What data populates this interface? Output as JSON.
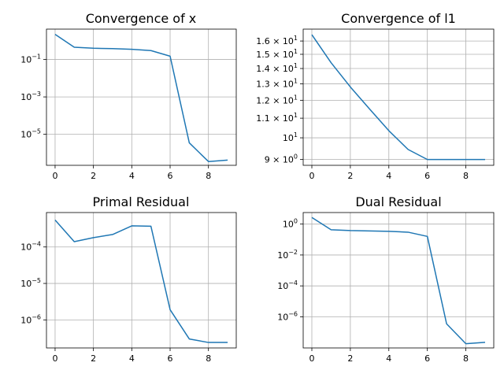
{
  "chart_data": [
    {
      "type": "line",
      "title": "Convergence of x",
      "yscale": "log",
      "grid": true,
      "color": "#1f77b4",
      "x": [
        0,
        1,
        2,
        3,
        4,
        5,
        6,
        7,
        8,
        9
      ],
      "y": [
        2.2,
        0.45,
        0.4,
        0.38,
        0.35,
        0.3,
        0.15,
        3.5e-06,
        3.5e-07,
        4.2e-07
      ],
      "xlim": [
        -0.45,
        9.45
      ],
      "ylim": [
        2.2e-07,
        4.2
      ],
      "x_ticks": [
        0,
        2,
        4,
        6,
        8
      ],
      "x_tick_labels": [
        "0",
        "2",
        "4",
        "6",
        "8"
      ],
      "y_ticks": [
        1e-05,
        0.001,
        0.1
      ],
      "y_tick_labels": [
        {
          "base": "10",
          "exp": "−5"
        },
        {
          "base": "10",
          "exp": "−3"
        },
        {
          "base": "10",
          "exp": "−1"
        }
      ]
    },
    {
      "type": "line",
      "title": "Convergence of l1",
      "yscale": "log",
      "grid": true,
      "color": "#1f77b4",
      "x": [
        0,
        1,
        2,
        3,
        4,
        5,
        6,
        7,
        8,
        9
      ],
      "y": [
        16.5,
        14.4,
        12.8,
        11.5,
        10.35,
        9.45,
        9.0,
        9.0,
        9.0,
        9.0
      ],
      "xlim": [
        -0.45,
        9.45
      ],
      "ylim": [
        8.75,
        16.95
      ],
      "x_ticks": [
        0,
        2,
        4,
        6,
        8
      ],
      "x_tick_labels": [
        "0",
        "2",
        "4",
        "6",
        "8"
      ],
      "y_ticks": [
        16,
        15,
        14,
        13,
        12,
        11,
        10,
        9
      ],
      "y_tick_labels": [
        {
          "base": "1.6 × 10",
          "exp": "1"
        },
        {
          "base": "1.5 × 10",
          "exp": "1"
        },
        {
          "base": "1.4 × 10",
          "exp": "1"
        },
        {
          "base": "1.3 × 10",
          "exp": "1"
        },
        {
          "base": "1.2 × 10",
          "exp": "1"
        },
        {
          "base": "1.1 × 10",
          "exp": "1"
        },
        {
          "base": "10",
          "exp": "1"
        },
        {
          "base": "9 × 10",
          "exp": "0"
        }
      ]
    },
    {
      "type": "line",
      "title": "Primal Residual",
      "yscale": "log",
      "grid": true,
      "color": "#1f77b4",
      "x": [
        0,
        1,
        2,
        3,
        4,
        5,
        6,
        7,
        8,
        9
      ],
      "y": [
        0.00055,
        0.00014,
        0.00018,
        0.00022,
        0.00038,
        0.00037,
        1.9e-06,
        3e-07,
        2.4e-07,
        2.4e-07
      ],
      "xlim": [
        -0.45,
        9.45
      ],
      "ylim": [
        1.7e-07,
        0.00088
      ],
      "x_ticks": [
        0,
        2,
        4,
        6,
        8
      ],
      "x_tick_labels": [
        "0",
        "2",
        "4",
        "6",
        "8"
      ],
      "y_ticks": [
        1e-06,
        1e-05,
        0.0001
      ],
      "y_tick_labels": [
        {
          "base": "10",
          "exp": "−6"
        },
        {
          "base": "10",
          "exp": "−5"
        },
        {
          "base": "10",
          "exp": "−4"
        }
      ]
    },
    {
      "type": "line",
      "title": "Dual Residual",
      "yscale": "log",
      "grid": true,
      "color": "#1f77b4",
      "x": [
        0,
        1,
        2,
        3,
        4,
        5,
        6,
        7,
        8,
        9
      ],
      "y": [
        2.7,
        0.43,
        0.38,
        0.36,
        0.34,
        0.3,
        0.16,
        3.5e-07,
        1.8e-08,
        2.2e-08
      ],
      "xlim": [
        -0.45,
        9.45
      ],
      "ylim": [
        9.6e-09,
        5.6
      ],
      "x_ticks": [
        0,
        2,
        4,
        6,
        8
      ],
      "x_tick_labels": [
        "0",
        "2",
        "4",
        "6",
        "8"
      ],
      "y_ticks": [
        1e-06,
        0.0001,
        0.01,
        1
      ],
      "y_tick_labels": [
        {
          "base": "10",
          "exp": "−6"
        },
        {
          "base": "10",
          "exp": "−4"
        },
        {
          "base": "10",
          "exp": "−2"
        },
        {
          "base": "10",
          "exp": "0"
        }
      ]
    }
  ]
}
